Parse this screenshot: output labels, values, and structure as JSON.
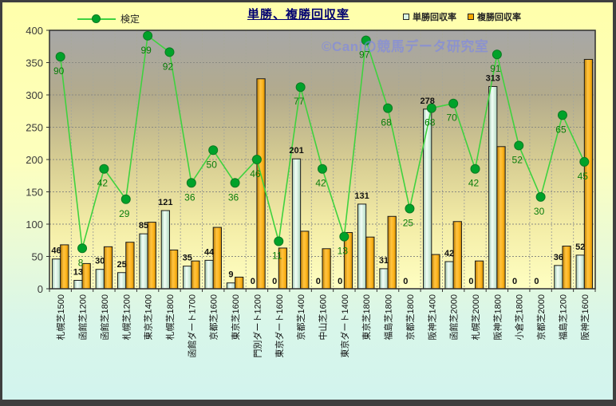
{
  "window": {
    "title": "単勝、複勝回収率"
  },
  "watermark": "©Caniの競馬データ研究室",
  "legend": {
    "kentei": "検定",
    "tansho": "単勝回収率",
    "fukusho": "複勝回収率"
  },
  "colors": {
    "line": "#3fd23f",
    "marker": "#00a22a",
    "bar_tansho": "#d9f2e2",
    "bar_fukusho": "#f5a800",
    "title": "#000070",
    "line_label": "#0a7d0a",
    "bar_label": "#111111",
    "watermark": "#7a86e8"
  },
  "chart_data": {
    "type": "bar",
    "title": "単勝、複勝回収率",
    "xlabel": "",
    "ylabel": "",
    "ylim": [
      0,
      400
    ],
    "y_ticks": [
      0,
      50,
      100,
      150,
      200,
      250,
      300,
      350,
      400
    ],
    "grid": true,
    "legend_position": "top",
    "categories": [
      "札幌芝1500",
      "函館芝1200",
      "函館芝1800",
      "札幌芝1200",
      "東京芝1400",
      "札幌芝1800",
      "函館ダート1700",
      "京都芝1600",
      "東京芝1600",
      "門別ダート1200",
      "東京ダート1600",
      "京都芝1400",
      "中山芝1600",
      "東京ダート1400",
      "東京芝1800",
      "福島芝1800",
      "京都芝1800",
      "阪神芝1400",
      "函館芝2000",
      "札幌芝2000",
      "阪神芝1800",
      "小倉芝1800",
      "京都芝2000",
      "福島芝1200",
      "阪神芝1600"
    ],
    "series": [
      {
        "name": "単勝回収率",
        "type": "bar",
        "color": "#d9f2e2",
        "labels_visible": true,
        "values": [
          46,
          13,
          30,
          25,
          85,
          121,
          35,
          44,
          9,
          0,
          0,
          201,
          0,
          0,
          131,
          31,
          0,
          278,
          42,
          0,
          313,
          0,
          0,
          36,
          52
        ]
      },
      {
        "name": "複勝回収率",
        "type": "bar",
        "color": "#f5a800",
        "labels_visible": false,
        "values": [
          68,
          39,
          65,
          72,
          103,
          60,
          43,
          95,
          18,
          325,
          63,
          89,
          62,
          87,
          80,
          112,
          0,
          53,
          104,
          43,
          220,
          0,
          0,
          66,
          355
        ]
      },
      {
        "name": "検定",
        "type": "line",
        "axis": "secondary",
        "color": "#3fd23f",
        "labels_visible": true,
        "values": [
          90,
          8,
          42,
          29,
          99,
          92,
          36,
          50,
          36,
          46,
          11,
          77,
          42,
          13,
          97,
          68,
          25,
          68,
          70,
          42,
          91,
          52,
          30,
          65,
          45
        ]
      }
    ]
  }
}
